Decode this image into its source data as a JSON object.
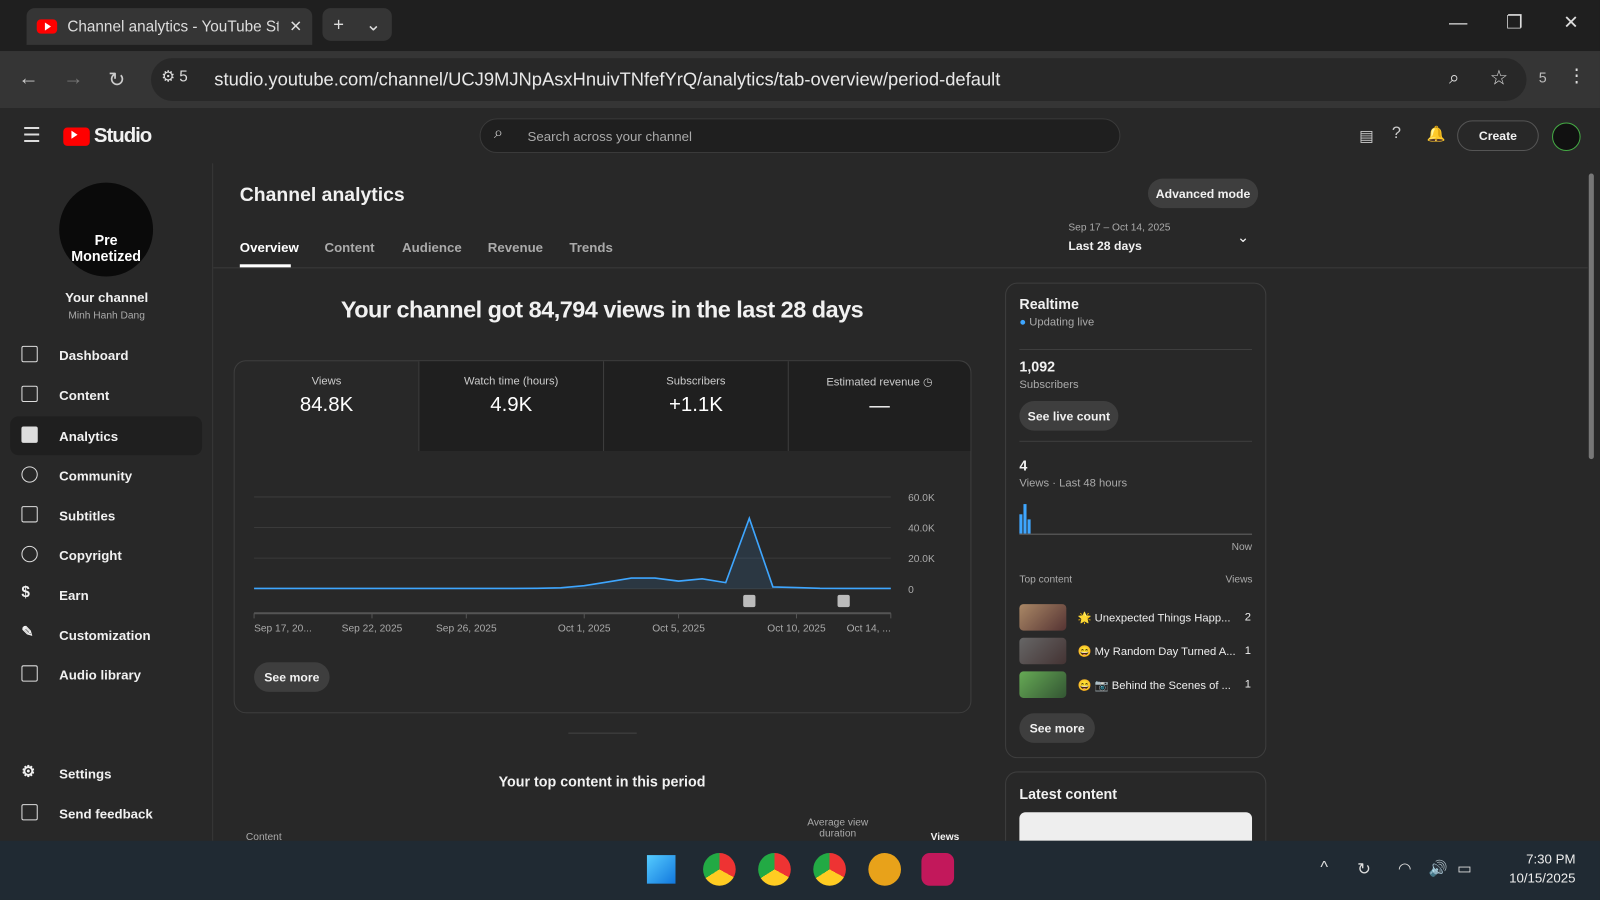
{
  "browser": {
    "tab_title": "Channel analytics - YouTube Stu",
    "url": "studio.youtube.com/channel/UCJ9MJNpAsxHnuivTNfefYrQ/analytics/tab-overview/period-default",
    "site_badge": "5",
    "ext_count": "5"
  },
  "header": {
    "logo": "Studio",
    "search_placeholder": "Search across your channel",
    "create": "Create"
  },
  "sidebar": {
    "channel_label": "Your channel",
    "channel_name": "Minh Hanh Dang",
    "avatar_text": "Pre Monetized",
    "items": [
      {
        "label": "Dashboard"
      },
      {
        "label": "Content"
      },
      {
        "label": "Analytics"
      },
      {
        "label": "Community"
      },
      {
        "label": "Subtitles"
      },
      {
        "label": "Copyright"
      },
      {
        "label": "Earn"
      },
      {
        "label": "Customization"
      },
      {
        "label": "Audio library"
      }
    ],
    "bottom": [
      {
        "label": "Settings"
      },
      {
        "label": "Send feedback"
      }
    ]
  },
  "page": {
    "title": "Channel analytics",
    "advanced": "Advanced mode",
    "tabs": [
      "Overview",
      "Content",
      "Audience",
      "Revenue",
      "Trends"
    ],
    "date_range": "Sep 17 – Oct 14, 2025",
    "period": "Last 28 days",
    "headline": "Your channel got 84,794 views in the last 28 days",
    "metrics": [
      {
        "label": "Views",
        "value": "84.8K"
      },
      {
        "label": "Watch time (hours)",
        "value": "4.9K"
      },
      {
        "label": "Subscribers",
        "value": "+1.1K"
      },
      {
        "label": "Estimated revenue",
        "value": "—"
      }
    ],
    "see_more": "See more",
    "top_content_title": "Your top content in this period",
    "col_content": "Content",
    "col_avd": "Average view duration",
    "col_views": "Views"
  },
  "chart_data": {
    "type": "area",
    "ylim": [
      0,
      60000
    ],
    "yticks": [
      "60.0K",
      "40.0K",
      "20.0K",
      "0"
    ],
    "ytick_values": [
      60000,
      40000,
      20000,
      0
    ],
    "xtick_labels": [
      "Sep 17, 20...",
      "Sep 22, 2025",
      "Sep 26, 2025",
      "Oct 1, 2025",
      "Oct 5, 2025",
      "Oct 10, 2025",
      "Oct 14, ..."
    ],
    "xtick_index": [
      0,
      5,
      9,
      14,
      18,
      23,
      27
    ],
    "values": [
      200,
      200,
      200,
      200,
      200,
      200,
      200,
      200,
      200,
      200,
      200,
      200,
      300,
      600,
      2000,
      4500,
      7000,
      7000,
      5000,
      6500,
      4000,
      46000,
      1200,
      800,
      300,
      200,
      200,
      200
    ],
    "color": "#3ea6ff"
  },
  "realtime": {
    "title": "Realtime",
    "status": "Updating live",
    "subs": "1,092",
    "subs_label": "Subscribers",
    "live_btn": "See live count",
    "views": "4",
    "views_label": "Views · Last 48 hours",
    "now": "Now",
    "top_content": "Top content",
    "views_col": "Views",
    "items": [
      {
        "title": "🌟 Unexpected Things Happ...",
        "views": "2"
      },
      {
        "title": "😄 My Random Day Turned A...",
        "views": "1"
      },
      {
        "title": "😄 📷 Behind the Scenes of ...",
        "views": "1"
      }
    ],
    "see_more": "See more",
    "latest": "Latest content"
  },
  "taskbar": {
    "time": "7:30 PM",
    "date": "10/15/2025"
  }
}
